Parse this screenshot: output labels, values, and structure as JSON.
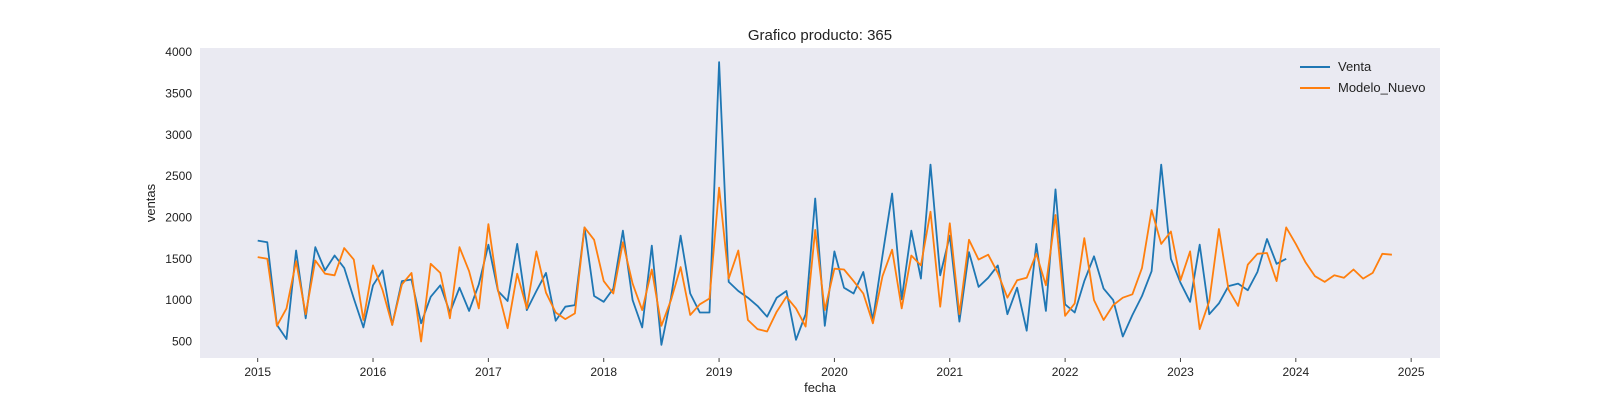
{
  "chart_data": {
    "type": "line",
    "title": "Grafico producto: 365",
    "xlabel": "fecha",
    "ylabel": "ventas",
    "xlim": [
      "2014-07-01",
      "2025-04-01"
    ],
    "ylim": [
      300,
      4050
    ],
    "x_ticks": [
      "2015",
      "2016",
      "2017",
      "2018",
      "2019",
      "2020",
      "2021",
      "2022",
      "2023",
      "2024",
      "2025"
    ],
    "y_ticks": [
      500,
      1000,
      1500,
      2000,
      2500,
      3000,
      3500,
      4000
    ],
    "grid": false,
    "legend_position": "top-right",
    "background": "#eaeaf2",
    "series": [
      {
        "name": "Venta",
        "color": "#1f77b4",
        "start": "2015-01",
        "values": [
          1720,
          1700,
          700,
          530,
          1600,
          780,
          1640,
          1360,
          1540,
          1390,
          1020,
          670,
          1180,
          1360,
          700,
          1230,
          1250,
          720,
          1040,
          1180,
          850,
          1150,
          870,
          1190,
          1670,
          1110,
          990,
          1680,
          880,
          1110,
          1330,
          750,
          920,
          940,
          1880,
          1050,
          980,
          1140,
          1840,
          1000,
          670,
          1660,
          460,
          1030,
          1780,
          1080,
          850,
          850,
          3880,
          1220,
          1110,
          1030,
          930,
          800,
          1030,
          1110,
          520,
          830,
          2230,
          690,
          1590,
          1150,
          1080,
          1340,
          760,
          1540,
          2290,
          1010,
          1840,
          1260,
          2640,
          1300,
          1780,
          740,
          1580,
          1160,
          1270,
          1420,
          830,
          1150,
          630,
          1680,
          870,
          2340,
          950,
          850,
          1230,
          1530,
          1140,
          1000,
          560,
          820,
          1050,
          1350,
          2640,
          1500,
          1210,
          980,
          1670,
          830,
          960,
          1170,
          1200,
          1120,
          1340,
          1740,
          1440,
          1500
        ]
      },
      {
        "name": "Modelo_Nuevo",
        "color": "#ff7f0e",
        "start": "2015-01",
        "values": [
          1520,
          1500,
          690,
          900,
          1470,
          830,
          1480,
          1320,
          1300,
          1630,
          1490,
          760,
          1420,
          1120,
          700,
          1190,
          1330,
          500,
          1440,
          1330,
          780,
          1640,
          1350,
          900,
          1920,
          1120,
          660,
          1320,
          900,
          1590,
          1090,
          850,
          770,
          840,
          1880,
          1730,
          1230,
          1080,
          1700,
          1200,
          880,
          1370,
          690,
          1000,
          1400,
          820,
          950,
          1020,
          2360,
          1260,
          1600,
          760,
          650,
          620,
          860,
          1040,
          900,
          680,
          1850,
          880,
          1380,
          1370,
          1230,
          1080,
          720,
          1290,
          1610,
          900,
          1540,
          1420,
          2070,
          920,
          1930,
          830,
          1730,
          1490,
          1550,
          1330,
          1030,
          1240,
          1270,
          1560,
          1180,
          2030,
          810,
          960,
          1750,
          1000,
          760,
          940,
          1030,
          1070,
          1390,
          2090,
          1680,
          1830,
          1240,
          1590,
          650,
          990,
          1860,
          1130,
          930,
          1430,
          1560,
          1570,
          1230,
          1880,
          1680,
          1460,
          1290,
          1220,
          1300,
          1270,
          1370,
          1260,
          1330,
          1560,
          1550
        ]
      }
    ]
  }
}
